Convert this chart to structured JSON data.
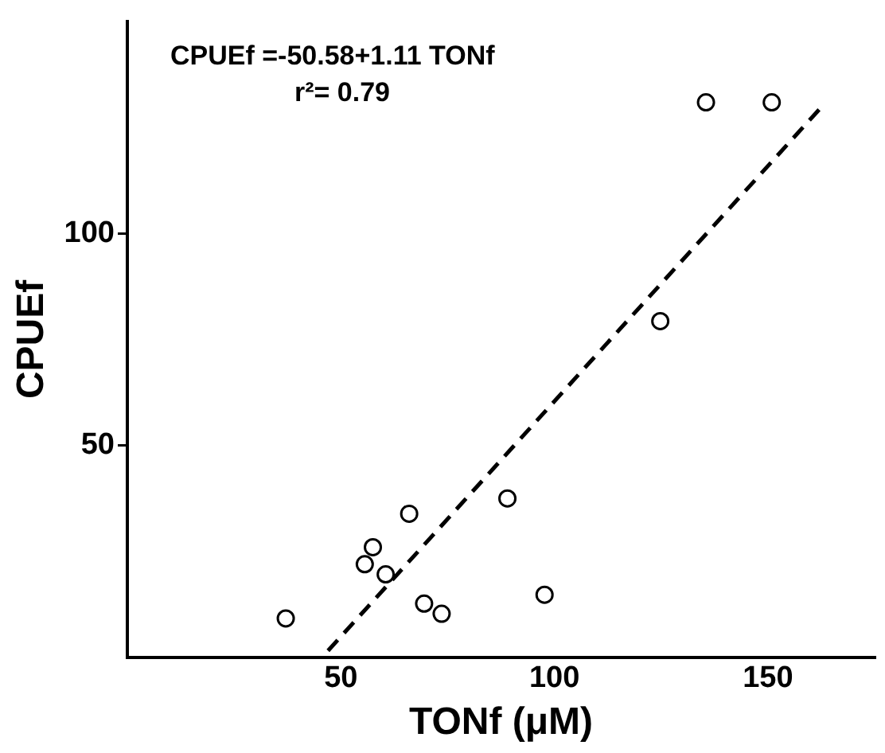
{
  "chart_data": {
    "type": "scatter",
    "xlabel": "TONf (μM)",
    "ylabel": "CPUEf",
    "annotations": [
      "CPUEf =-50.58+1.11 TONf",
      "r²= 0.79"
    ],
    "xlim": [
      0,
      175
    ],
    "ylim": [
      0,
      150
    ],
    "xticks": [
      50,
      100,
      150
    ],
    "yticks": [
      50,
      100
    ],
    "grid": false,
    "legend": false,
    "marker": "circle",
    "series": [
      {
        "color": "#000000",
        "x": [
          37.1,
          55.6,
          57.5,
          60.5,
          66.0,
          69.5,
          73.6,
          89.0,
          97.7,
          124.8,
          135.5,
          150.9
        ],
        "values": [
          9.2,
          22.0,
          26.0,
          19.6,
          33.9,
          12.7,
          10.3,
          37.5,
          14.8,
          79.3,
          130.9,
          130.9
        ]
      },
      {
        "type": "line",
        "color": "#000000",
        "line_style": "dashed",
        "marker": "none",
        "x": [
          47,
          162
        ],
        "values": [
          1.6,
          129.2
        ]
      }
    ]
  }
}
